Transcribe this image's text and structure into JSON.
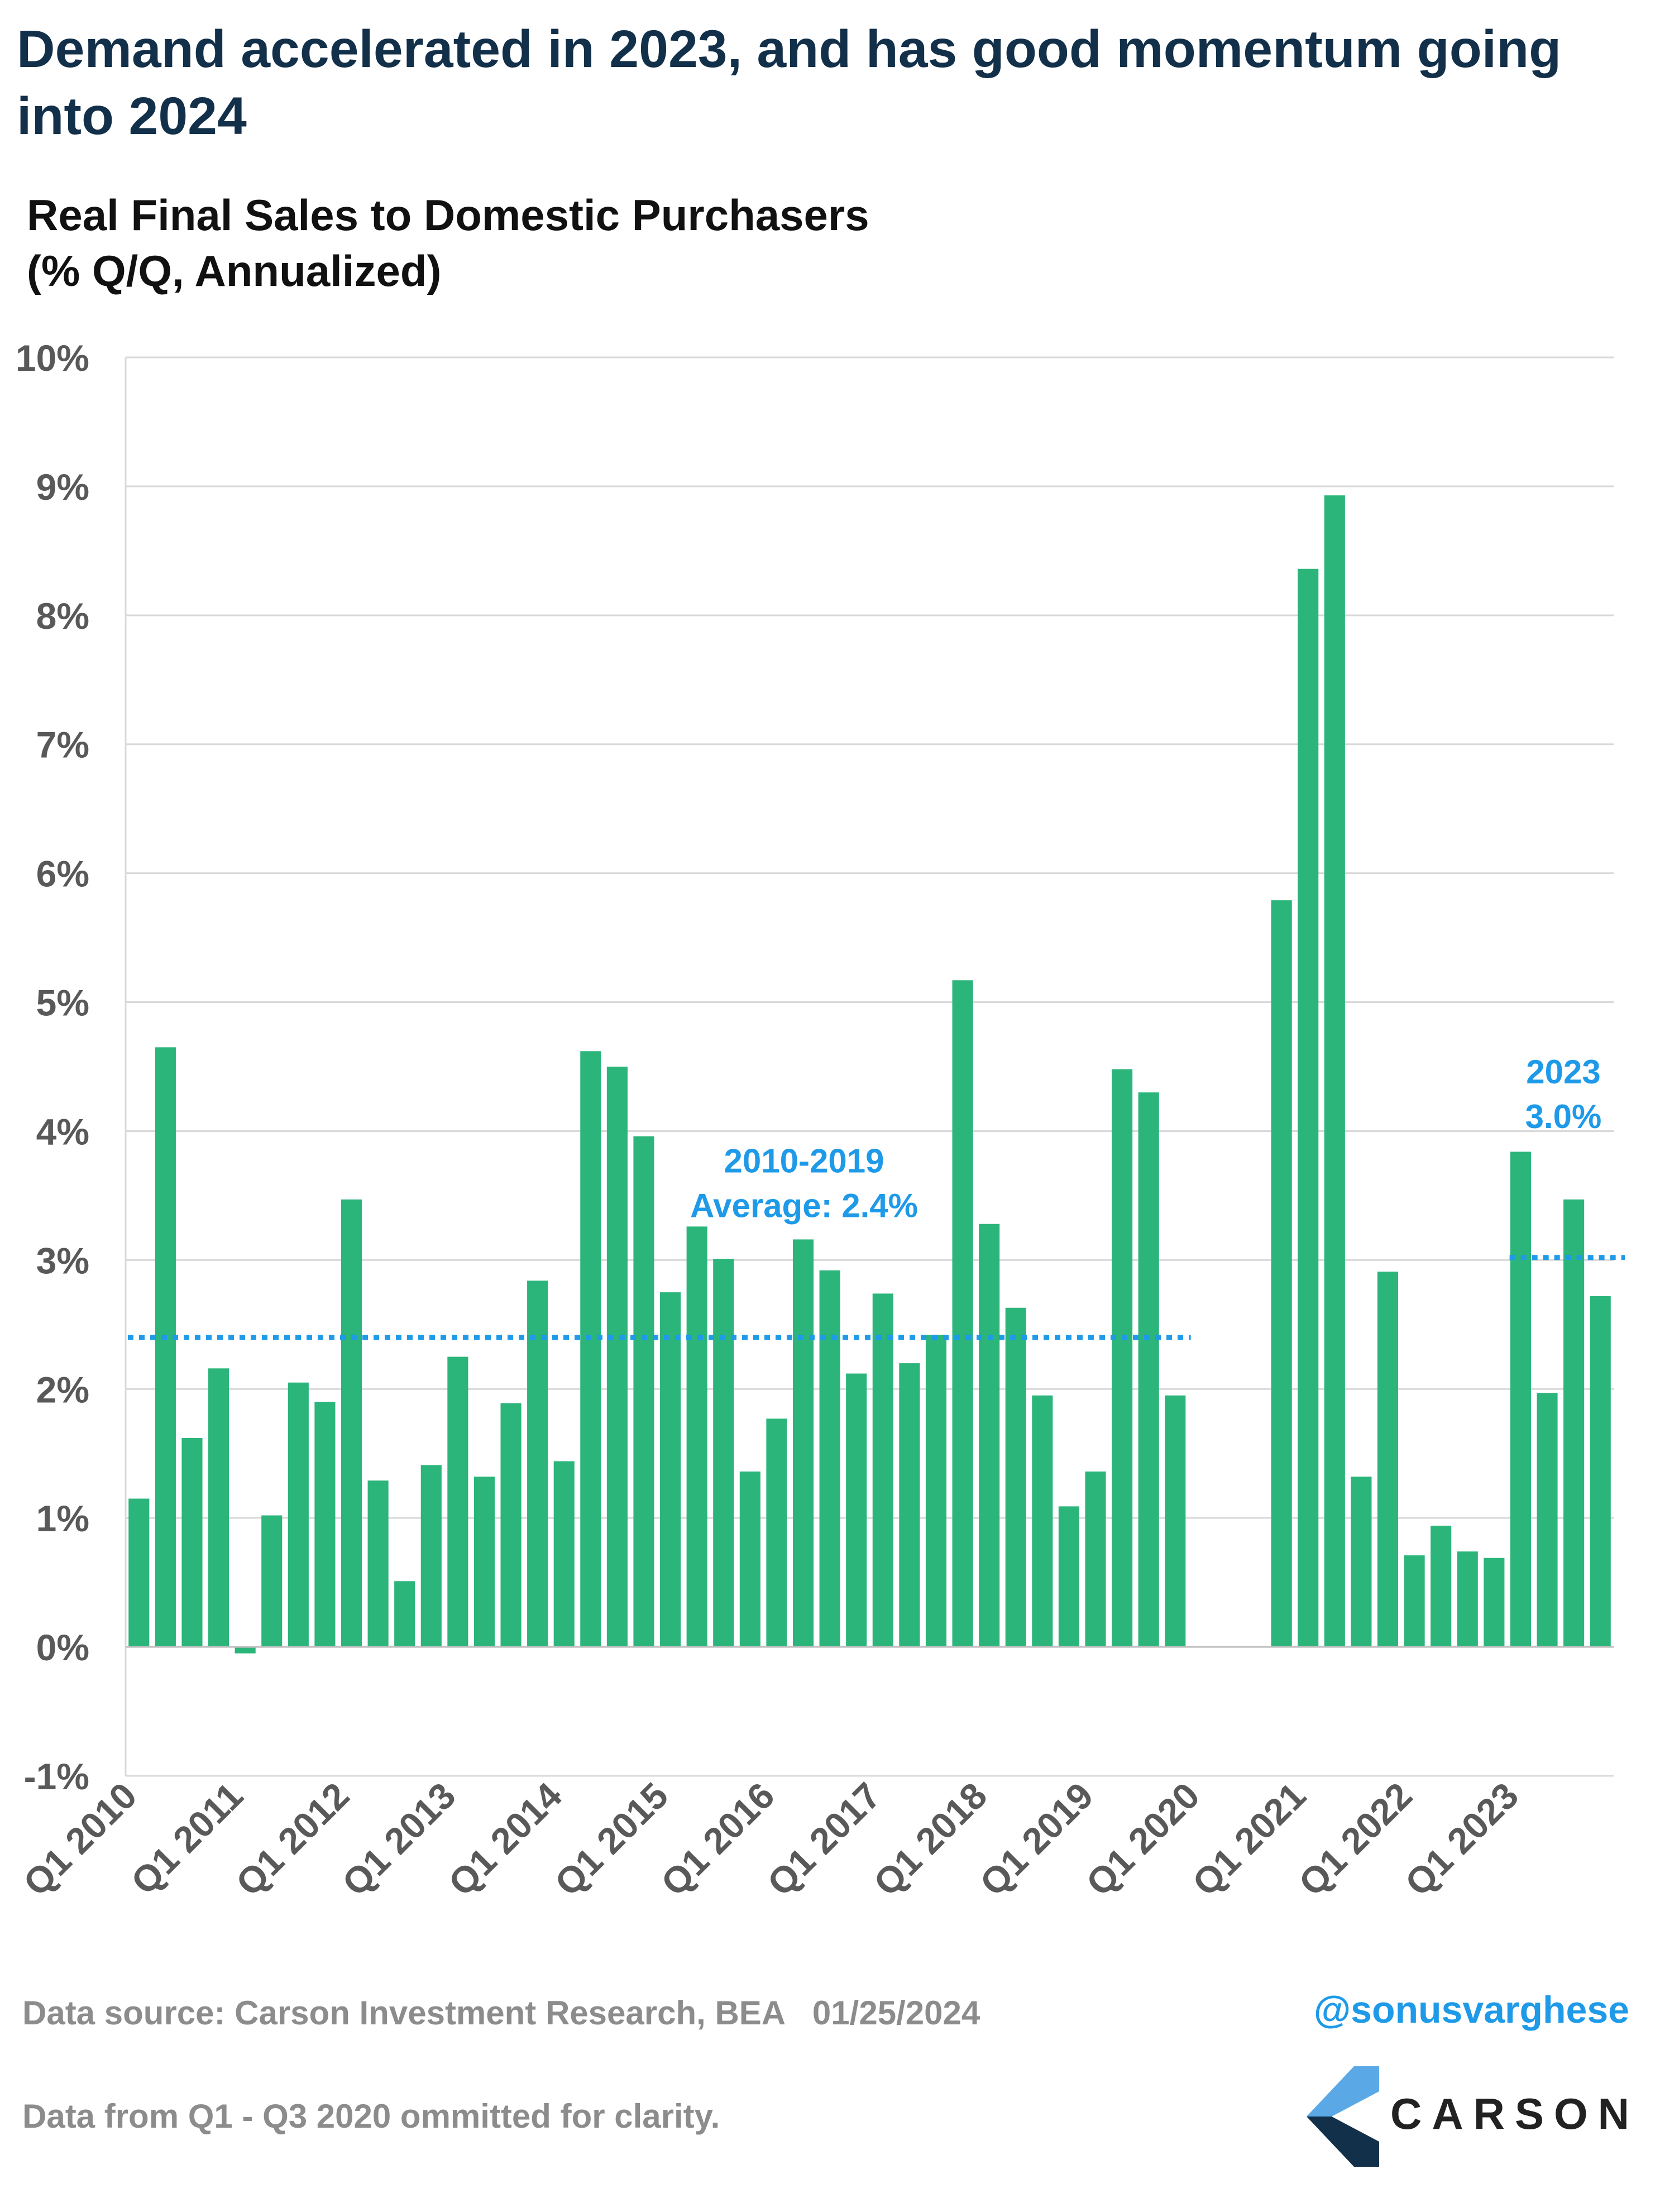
{
  "header": {
    "title": "Demand accelerated in 2023, and has good momentum going into 2024",
    "subtitle_line1": "Real Final Sales to Domestic Purchasers",
    "subtitle_line2": "(% Q/Q, Annualized)"
  },
  "footer": {
    "source": "Data source: Carson Investment Research, BEA   01/25/2024",
    "note": "Data from Q1 - Q3 2020 ommitted for clarity.",
    "handle": "@sonusvarghese",
    "logo_text": "CARSON"
  },
  "colors": {
    "bar": "#2bb57a",
    "average_line": "#1f9ae8",
    "grid": "#d9d9d9",
    "axis_text": "#595959",
    "title": "#13304a"
  },
  "icons": {
    "logo": "carson-chevron-logo-icon"
  },
  "chart_data": {
    "type": "bar",
    "title": "Real Final Sales to Domestic Purchasers",
    "ylabel": "(% Q/Q, Annualized)",
    "ylim": [
      -1,
      10
    ],
    "yticks": [
      "-1%",
      "0%",
      "1%",
      "2%",
      "3%",
      "4%",
      "5%",
      "6%",
      "7%",
      "8%",
      "9%",
      "10%"
    ],
    "grid": true,
    "categories": [
      "Q1 2010",
      "Q2 2010",
      "Q3 2010",
      "Q4 2010",
      "Q1 2011",
      "Q2 2011",
      "Q3 2011",
      "Q4 2011",
      "Q1 2012",
      "Q2 2012",
      "Q3 2012",
      "Q4 2012",
      "Q1 2013",
      "Q2 2013",
      "Q3 2013",
      "Q4 2013",
      "Q1 2014",
      "Q2 2014",
      "Q3 2014",
      "Q4 2014",
      "Q1 2015",
      "Q2 2015",
      "Q3 2015",
      "Q4 2015",
      "Q1 2016",
      "Q2 2016",
      "Q3 2016",
      "Q4 2016",
      "Q1 2017",
      "Q2 2017",
      "Q3 2017",
      "Q4 2017",
      "Q1 2018",
      "Q2 2018",
      "Q3 2018",
      "Q4 2018",
      "Q1 2019",
      "Q2 2019",
      "Q3 2019",
      "Q4 2019",
      "Q1 2020",
      "Q2 2020",
      "Q3 2020",
      "Q4 2020",
      "Q1 2021",
      "Q2 2021",
      "Q3 2021",
      "Q4 2021",
      "Q1 2022",
      "Q2 2022",
      "Q3 2022",
      "Q4 2022",
      "Q1 2023",
      "Q2 2023",
      "Q3 2023",
      "Q4 2023"
    ],
    "xtick_labels": [
      "Q1 2010",
      "Q1 2011",
      "Q1 2012",
      "Q1 2013",
      "Q1 2014",
      "Q1 2015",
      "Q1 2016",
      "Q1 2017",
      "Q1 2018",
      "Q1 2019",
      "Q1 2020",
      "Q1 2021",
      "Q1 2022",
      "Q1 2023"
    ],
    "values": [
      1.15,
      4.65,
      1.62,
      2.16,
      -0.05,
      1.02,
      2.05,
      1.9,
      3.47,
      1.29,
      0.51,
      1.41,
      2.25,
      1.32,
      1.89,
      2.84,
      1.44,
      4.62,
      4.5,
      3.96,
      2.75,
      3.26,
      3.01,
      1.36,
      1.77,
      3.16,
      2.92,
      2.12,
      2.74,
      2.2,
      2.42,
      5.17,
      3.28,
      2.63,
      1.95,
      1.09,
      1.36,
      4.48,
      4.3,
      1.95,
      null,
      null,
      null,
      5.79,
      8.36,
      8.93,
      1.32,
      2.91,
      0.71,
      0.94,
      0.74,
      0.69,
      3.84,
      1.97,
      3.47,
      2.72
    ],
    "reference_lines": [
      {
        "value": 2.4,
        "from": "Q1 2010",
        "to": "Q4 2019",
        "label_line1": "2010-2019",
        "label_line2": "Average: 2.4%"
      },
      {
        "value": 3.02,
        "from": "Q1 2023",
        "to": "Q4 2023",
        "label_line1": "2023",
        "label_line2": "3.0%"
      }
    ]
  }
}
